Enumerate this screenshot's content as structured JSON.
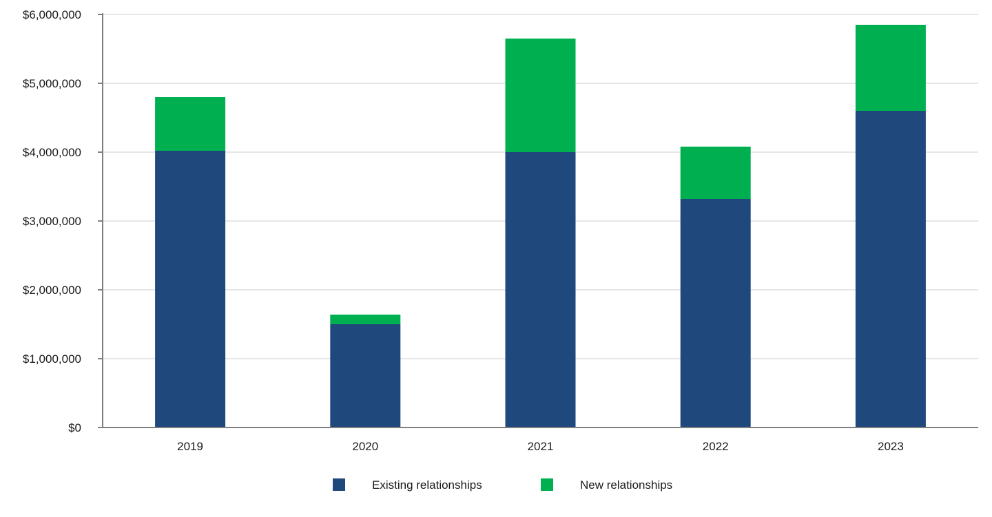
{
  "chart_data": {
    "type": "bar",
    "stacked": true,
    "categories": [
      "2019",
      "2020",
      "2021",
      "2022",
      "2023"
    ],
    "series": [
      {
        "name": "Existing relationships",
        "color": "#1f497d",
        "values": [
          4020000,
          1500000,
          4000000,
          3320000,
          4600000
        ]
      },
      {
        "name": "New relationships",
        "color": "#00b050",
        "values": [
          780000,
          140000,
          1650000,
          760000,
          1250000
        ]
      }
    ],
    "ylim": [
      0,
      6000000
    ],
    "yticks": [
      0,
      1000000,
      2000000,
      3000000,
      4000000,
      5000000,
      6000000
    ],
    "ytick_labels": [
      "$0",
      "$1,000,000",
      "$2,000,000",
      "$3,000,000",
      "$4,000,000",
      "$5,000,000",
      "$6,000,000"
    ],
    "title": "",
    "xlabel": "",
    "ylabel": "",
    "grid": true,
    "legend_position": "bottom-center",
    "colors": {
      "grid": "#e6e6e6",
      "axis": "#7f7f7f",
      "text": "#1a1a1a"
    }
  }
}
